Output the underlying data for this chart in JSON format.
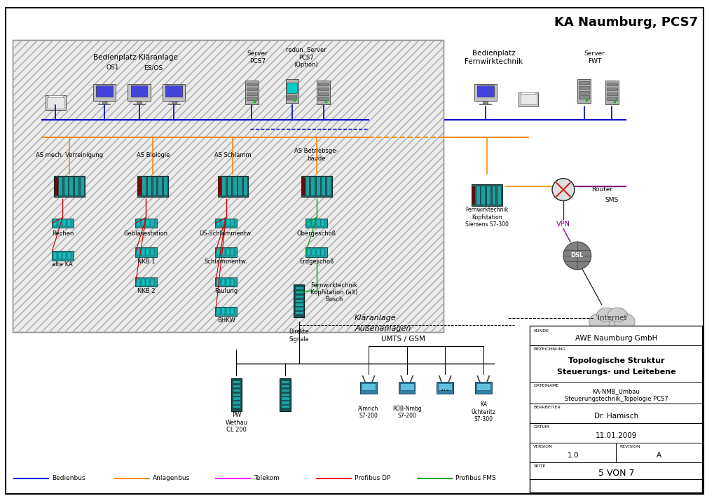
{
  "title": "KA Naumburg, PCS7",
  "bg_color": "#ffffff",
  "hatch_area_color": "#e8e8e8",
  "title_fontsize": 14,
  "info_box": {
    "kunde": "AWE Naumburg GmbH",
    "bezeichnung_line1": "Topologische Struktur",
    "bezeichnung_line2": "Steuerungs- und Leitebene",
    "dateiname_label": "DATEINAME",
    "dateiname_line1": "KA-NMB_Umbau",
    "dateiname_line2": "Steuerungstechnik_Topologie PCS7",
    "bearbeiter_label": "BEARBEITER",
    "bearbeiter": "Dr. Hamisch",
    "datum_label": "DATUM",
    "datum": "11.01.2009",
    "version_label": "VERSION",
    "version": "1.0",
    "revision_label": "REVISION",
    "revision": "A",
    "seite_label": "SEITE",
    "seite": "5 VON 7"
  },
  "legend": [
    {
      "label": "Bedienbus",
      "color": "#0000ff",
      "style": "solid"
    },
    {
      "label": "Anlagenbus",
      "color": "#ff8c00",
      "style": "solid"
    },
    {
      "label": "Telekom",
      "color": "#ff00ff",
      "style": "solid"
    },
    {
      "label": "Profibus DP",
      "color": "#ff0000",
      "style": "solid"
    },
    {
      "label": "Profibus FMS",
      "color": "#00aa00",
      "style": "solid"
    }
  ]
}
